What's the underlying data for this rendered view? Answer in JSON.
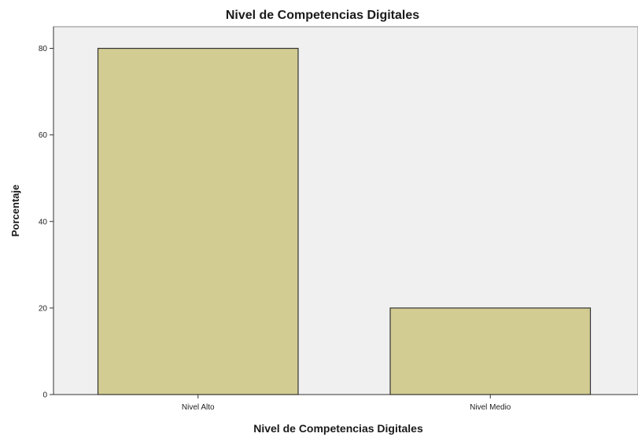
{
  "chart_data": {
    "type": "bar",
    "title": "Nivel de Competencias Digitales",
    "xlabel": "Nivel de Competencias Digitales",
    "ylabel": "Porcentaje",
    "categories": [
      "Nivel Alto",
      "Nivel Medio"
    ],
    "values": [
      80,
      20
    ],
    "ylim": [
      0,
      85
    ],
    "yticks": [
      0,
      20,
      40,
      60,
      80
    ],
    "grid": false,
    "bar_color": "#d2cc92",
    "bar_edge_color": "#333333",
    "plot_background": "#f0f0f0"
  }
}
